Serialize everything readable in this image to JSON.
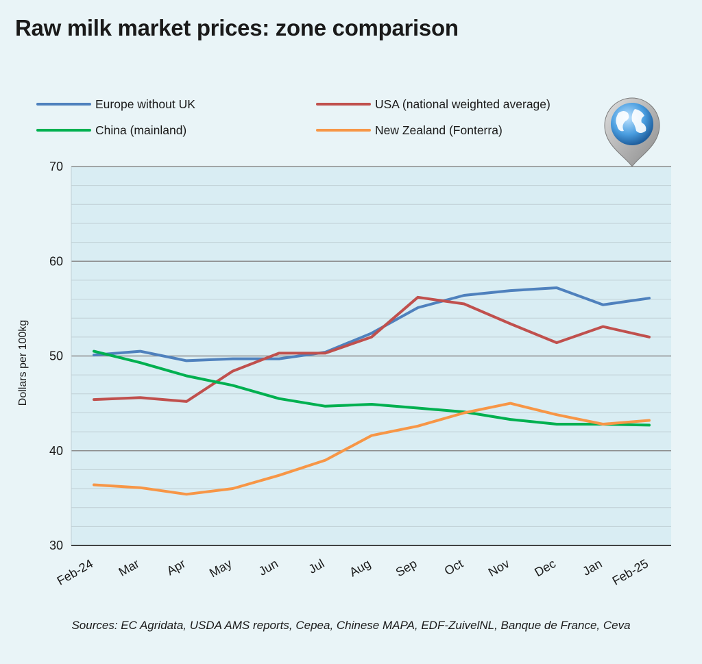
{
  "chart_data": {
    "type": "line",
    "title": "Raw milk market prices: zone comparison",
    "ylabel": "Dollars per 100kg",
    "xlabel": "",
    "ylim": [
      30,
      70
    ],
    "yticks": [
      30,
      40,
      50,
      60,
      70
    ],
    "grid": true,
    "legend_position": "top",
    "categories": [
      "Feb-24",
      "Mar",
      "Apr",
      "May",
      "Jun",
      "Jul",
      "Aug",
      "Sep",
      "Oct",
      "Nov",
      "Dec",
      "Jan",
      "Feb-25"
    ],
    "series": [
      {
        "name": "Europe without UK",
        "color": "#4f81bd",
        "values": [
          50.1,
          50.5,
          49.5,
          49.7,
          49.7,
          50.4,
          52.4,
          55.1,
          56.4,
          56.9,
          57.2,
          55.4,
          56.1
        ]
      },
      {
        "name": "USA (national weighted average)",
        "color": "#c0504d",
        "values": [
          45.4,
          45.6,
          45.2,
          48.4,
          50.3,
          50.3,
          52.0,
          56.2,
          55.5,
          53.4,
          51.4,
          53.1,
          52.0
        ]
      },
      {
        "name": "China (mainland)",
        "color": "#00b050",
        "values": [
          50.5,
          49.3,
          47.9,
          46.9,
          45.5,
          44.7,
          44.9,
          44.5,
          44.1,
          43.3,
          42.8,
          42.8,
          42.7
        ]
      },
      {
        "name": "New Zealand (Fonterra)",
        "color": "#f79646",
        "values": [
          36.4,
          36.1,
          35.4,
          36.0,
          37.4,
          39.0,
          41.6,
          42.6,
          44.0,
          45.0,
          43.8,
          42.8,
          43.2
        ]
      }
    ]
  },
  "sources": "Sources: EC Agridata, USDA AMS reports, Cepea, Chinese MAPA, EDF-ZuivelNL, Banque de France, Ceva",
  "icons": {
    "globe": "globe-pin-icon"
  }
}
